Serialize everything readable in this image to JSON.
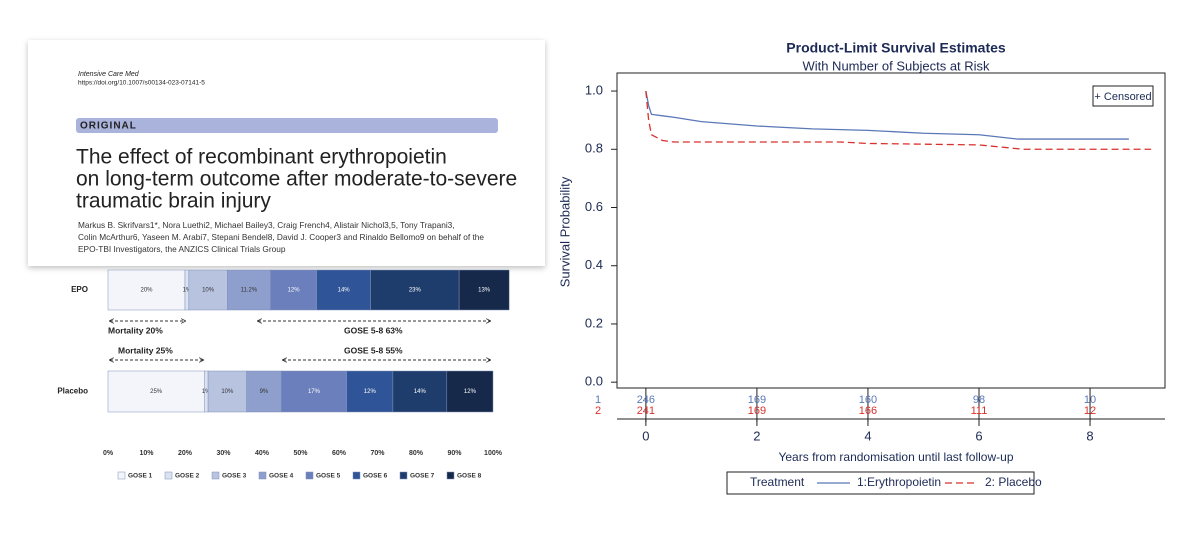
{
  "paper": {
    "journal": "Intensive Care Med",
    "doi": "https://doi.org/10.1007/s00134-023-07141-5",
    "section": "ORIGINAL",
    "title_lines": [
      "The effect of recombinant erythropoietin",
      "on long-term outcome after moderate-to-severe",
      "traumatic brain injury"
    ],
    "author_lines": [
      "Markus B. Skrifvars1*, Nora Luethi2, Michael Bailey3, Craig French4, Alistair Nichol3,5, Tony Trapani3,",
      "Colin McArthur6, Yaseen M. Arabi7, Stepani Bendel8, David J. Cooper3 and Rinaldo Bellomo9 on behalf of the",
      "EPO-TBI Investigators, the ANZICS Clinical Trials Group"
    ]
  },
  "chart_data": [
    {
      "type": "stacked-bar",
      "categories": [
        "EPO",
        "Placebo"
      ],
      "series": [
        {
          "name": "GOSE 1",
          "color": "#f3f5fb",
          "values": [
            20,
            25
          ],
          "value_labels": [
            "20%",
            "25%"
          ]
        },
        {
          "name": "GOSE 2",
          "color": "#dbe2f1",
          "values": [
            1,
            1
          ],
          "value_labels": [
            "1%",
            "1%"
          ]
        },
        {
          "name": "GOSE 3",
          "color": "#b8c3e0",
          "values": [
            10,
            10
          ],
          "value_labels": [
            "10%",
            "10%"
          ]
        },
        {
          "name": "GOSE 4",
          "color": "#8e9ecd",
          "values": [
            11.2,
            9
          ],
          "value_labels": [
            "11.2%",
            "9%"
          ]
        },
        {
          "name": "GOSE 5",
          "color": "#6a7fbb",
          "values": [
            12,
            17
          ],
          "value_labels": [
            "12%",
            "17%"
          ]
        },
        {
          "name": "GOSE 6",
          "color": "#2f5497",
          "values": [
            14,
            12
          ],
          "value_labels": [
            "14%",
            "12%"
          ]
        },
        {
          "name": "GOSE 7",
          "color": "#1f3d6c",
          "values": [
            23,
            14
          ],
          "value_labels": [
            "23%",
            "14%"
          ]
        },
        {
          "name": "GOSE 8",
          "color": "#16294a",
          "values": [
            13,
            12
          ],
          "value_labels": [
            "13%",
            "12%"
          ]
        }
      ],
      "xlim": [
        0,
        100
      ],
      "xticks": [
        {
          "value": 0,
          "label": "0%"
        },
        {
          "value": 10,
          "label": "10%"
        },
        {
          "value": 20,
          "label": "20%"
        },
        {
          "value": 30,
          "label": "30%"
        },
        {
          "value": 40,
          "label": "40%"
        },
        {
          "value": 50,
          "label": "50%"
        },
        {
          "value": 60,
          "label": "60%"
        },
        {
          "value": 70,
          "label": "70%"
        },
        {
          "value": 80,
          "label": "80%"
        },
        {
          "value": 90,
          "label": "90%"
        },
        {
          "value": 100,
          "label": "100%"
        }
      ],
      "annotations": [
        "Mortality  20%",
        "GOSE 5-8  63%",
        "Mortality  25%",
        "GOSE 5-8  55%"
      ]
    },
    {
      "type": "line",
      "title": "Product-Limit Survival Estimates",
      "subtitle": "With Number of Subjects at Risk",
      "ylabel": "Survival Probability",
      "xlabel": "Years from randomisation until last follow-up",
      "xlim": [
        -0.52,
        9.35
      ],
      "ylim": [
        -0.02,
        1.062
      ],
      "xticks": [
        0,
        2,
        4,
        6,
        8
      ],
      "yticks": [
        {
          "value": 0,
          "label": "0.0"
        },
        0.2,
        0.4,
        0.6,
        0.8,
        {
          "value": 1,
          "label": "1.0"
        }
      ],
      "series": [
        {
          "name": "1:Erythropoietin",
          "color": "#5a78b8",
          "dash": false,
          "x": [
            0,
            0.05,
            0.1,
            0.3,
            0.5,
            1,
            2,
            3,
            4,
            5,
            6,
            6.7,
            8.7
          ],
          "values": [
            1,
            0.95,
            0.92,
            0.915,
            0.91,
            0.895,
            0.88,
            0.87,
            0.865,
            0.855,
            0.85,
            0.835,
            0.835
          ]
        },
        {
          "name": "2: Placebo",
          "color": "#d9302c",
          "dash": true,
          "x": [
            0,
            0.05,
            0.1,
            0.3,
            0.5,
            2,
            3.5,
            4,
            6,
            6.8,
            9.1
          ],
          "values": [
            1,
            0.9,
            0.85,
            0.83,
            0.825,
            0.825,
            0.825,
            0.82,
            0.815,
            0.8,
            0.8
          ]
        }
      ],
      "censor_legend": "+ Censored",
      "legend_title": "Treatment",
      "risk_table": [
        {
          "label": "1",
          "color": "#5a78b8",
          "values": [
            246,
            169,
            160,
            98,
            10
          ]
        },
        {
          "label": "2",
          "color": "#d9302c",
          "values": [
            241,
            169,
            166,
            111,
            12
          ]
        }
      ]
    }
  ]
}
